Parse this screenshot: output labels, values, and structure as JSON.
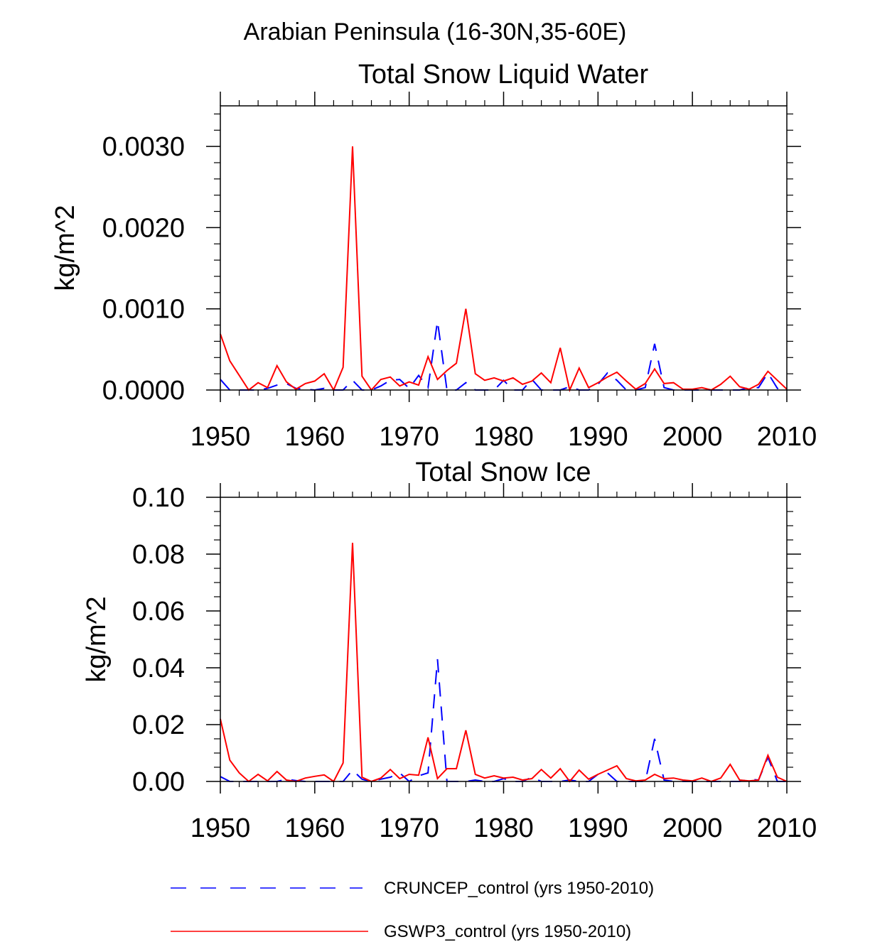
{
  "figure_title": "Arabian Peninsula (16-30N,35-60E)",
  "colors": {
    "cruncep": "#0000ff",
    "gswp3": "#ff0000",
    "axes": "#000000"
  },
  "legend": [
    {
      "key": "cruncep",
      "label": "CRUNCEP_control (yrs 1950-2010)",
      "style": "dashed"
    },
    {
      "key": "gswp3",
      "label": "GSWP3_control (yrs 1950-2010)",
      "style": "solid"
    }
  ],
  "chart_data": [
    {
      "type": "line",
      "title": "Total Snow Liquid Water",
      "xlabel": "",
      "ylabel": "kg/m^2",
      "xlim": [
        1950,
        2010
      ],
      "ylim": [
        0,
        0.0035
      ],
      "xticks": [
        1950,
        1960,
        1970,
        1980,
        1990,
        2000,
        2010
      ],
      "xtick_labels": [
        "1950",
        "1960",
        "1970",
        "1980",
        "1990",
        "2000",
        "2010"
      ],
      "yticks": [
        0,
        0.001,
        0.002,
        0.003
      ],
      "ytick_labels": [
        "0.0000",
        "0.0010",
        "0.0020",
        "0.0030"
      ],
      "x": [
        1950,
        1951,
        1952,
        1953,
        1954,
        1955,
        1956,
        1957,
        1958,
        1959,
        1960,
        1961,
        1962,
        1963,
        1964,
        1965,
        1966,
        1967,
        1968,
        1969,
        1970,
        1971,
        1972,
        1973,
        1974,
        1975,
        1976,
        1977,
        1978,
        1979,
        1980,
        1981,
        1982,
        1983,
        1984,
        1985,
        1986,
        1987,
        1988,
        1989,
        1990,
        1991,
        1992,
        1993,
        1994,
        1995,
        1996,
        1997,
        1998,
        1999,
        2000,
        2001,
        2002,
        2003,
        2004,
        2005,
        2006,
        2007,
        2008,
        2009,
        2010
      ],
      "series": [
        {
          "name": "CRUNCEP_control (yrs 1950-2010)",
          "values": [
            0.00013,
            0,
            0,
            0,
            0,
            2e-05,
            6e-05,
            8e-05,
            2e-05,
            1e-05,
            0,
            2e-05,
            0,
            0,
            0.00012,
            0,
            0,
            5e-05,
            0.00012,
            0.00013,
            2e-05,
            0.00018,
            3e-05,
            0.00085,
            0,
            0,
            9e-05,
            0,
            0,
            0,
            0.00012,
            0,
            0,
            0.00013,
            0,
            0,
            0,
            4e-05,
            0,
            0,
            7e-05,
            0.00021,
            0.00012,
            0,
            0,
            3e-05,
            0.00057,
            3e-05,
            0,
            0,
            0,
            0,
            0,
            0,
            0,
            0,
            3e-05,
            3e-05,
            0.00021,
            2e-05,
            0
          ]
        },
        {
          "name": "GSWP3_control (yrs 1950-2010)",
          "values": [
            0.00069,
            0.00036,
            0.00018,
            0,
            9e-05,
            3e-05,
            0.0003,
            0.0001,
            1e-05,
            8e-05,
            0.00011,
            0.0002,
            0,
            0.00028,
            0.003,
            0.00017,
            0,
            0.00013,
            0.00016,
            5e-05,
            0.0001,
            6e-05,
            0.00041,
            0.00013,
            0.00024,
            0.00033,
            0.001,
            0.0002,
            0.00012,
            0.00015,
            0.00011,
            0.00015,
            7e-05,
            0.00011,
            0.00021,
            9e-05,
            0.00052,
            0,
            0.00027,
            3e-05,
            9e-05,
            0.00016,
            0.00022,
            0.00011,
            1e-05,
            8e-05,
            0.00026,
            8e-05,
            9e-05,
            1e-05,
            1e-05,
            3e-05,
            0,
            7e-05,
            0.00017,
            4e-05,
            1e-05,
            7e-05,
            0.00023,
            0.00012,
            1e-05
          ]
        }
      ]
    },
    {
      "type": "line",
      "title": "Total Snow Ice",
      "xlabel": "",
      "ylabel": "kg/m^2",
      "xlim": [
        1950,
        2010
      ],
      "ylim": [
        0,
        0.1
      ],
      "xticks": [
        1950,
        1960,
        1970,
        1980,
        1990,
        2000,
        2010
      ],
      "xtick_labels": [
        "1950",
        "1960",
        "1970",
        "1980",
        "1990",
        "2000",
        "2010"
      ],
      "yticks": [
        0,
        0.02,
        0.04,
        0.06,
        0.08,
        0.1
      ],
      "ytick_labels": [
        "0.00",
        "0.02",
        "0.04",
        "0.06",
        "0.08",
        "0.10"
      ],
      "x": [
        1950,
        1951,
        1952,
        1953,
        1954,
        1955,
        1956,
        1957,
        1958,
        1959,
        1960,
        1961,
        1962,
        1963,
        1964,
        1965,
        1966,
        1967,
        1968,
        1969,
        1970,
        1971,
        1972,
        1973,
        1974,
        1975,
        1976,
        1977,
        1978,
        1979,
        1980,
        1981,
        1982,
        1983,
        1984,
        1985,
        1986,
        1987,
        1988,
        1989,
        1990,
        1991,
        1992,
        1993,
        1994,
        1995,
        1996,
        1997,
        1998,
        1999,
        2000,
        2001,
        2002,
        2003,
        2004,
        2005,
        2006,
        2007,
        2008,
        2009,
        2010
      ],
      "series": [
        {
          "name": "CRUNCEP_control (yrs 1950-2010)",
          "values": [
            0.0017,
            0,
            0,
            0,
            0,
            0,
            0,
            0.0008,
            0.0003,
            0,
            0,
            0,
            0,
            0,
            0.004,
            0.0008,
            0,
            0.0008,
            0.0015,
            0.003,
            0,
            0.002,
            0.003,
            0.043,
            0,
            0,
            0,
            0.0005,
            0,
            0,
            0.001,
            0,
            0,
            0.0015,
            0,
            0,
            0,
            0.0005,
            0,
            0,
            0.0025,
            0.003,
            0,
            0,
            0,
            0,
            0.015,
            0.0005,
            0,
            0,
            0,
            0,
            0,
            0,
            0,
            0,
            0.0008,
            0.0005,
            0.0085,
            0,
            0
          ]
        },
        {
          "name": "GSWP3_control (yrs 1950-2010)",
          "values": [
            0.022,
            0.0075,
            0.003,
            0,
            0.0025,
            0.0002,
            0.0035,
            0.0005,
            0,
            0.0012,
            0.0018,
            0.0023,
            0,
            0.0065,
            0.084,
            0.0015,
            0,
            0.0012,
            0.0042,
            0.001,
            0.0025,
            0.0022,
            0.0155,
            0.001,
            0.0045,
            0.0045,
            0.018,
            0.0025,
            0.0012,
            0.002,
            0.0012,
            0.0015,
            0.0005,
            0.001,
            0.0042,
            0.0012,
            0.0045,
            0,
            0.004,
            0.0008,
            0.0025,
            0.004,
            0.0055,
            0.001,
            0.0002,
            0.0005,
            0.0025,
            0.001,
            0.0012,
            0.0005,
            0.0002,
            0.0012,
            0,
            0.0012,
            0.006,
            0.0005,
            0.0002,
            0.0005,
            0.0092,
            0.0015,
            0
          ]
        }
      ]
    }
  ]
}
